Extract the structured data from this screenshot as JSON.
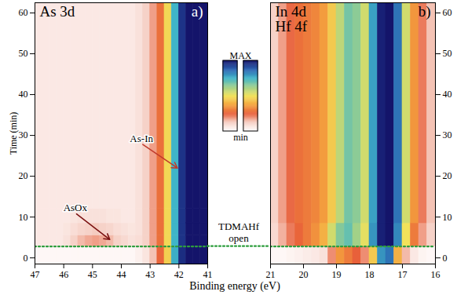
{
  "chart_data": {
    "type": "heatmap",
    "xlabel": "Binding energy (eV)",
    "ylabel": "Time (min)",
    "ylim": [
      -1.5,
      62.5
    ],
    "yticks": [
      0,
      10,
      20,
      30,
      40,
      50,
      60
    ],
    "colorbar": {
      "range": [
        0,
        100
      ],
      "ticks": [
        {
          "value": 0,
          "label": "min"
        },
        {
          "value": 100,
          "label": "MAX"
        }
      ],
      "colors": [
        "#ffffff",
        "#f6d0c6",
        "#e8603a",
        "#f4a43e",
        "#f2e25a",
        "#9fd08a",
        "#3fb5c8",
        "#2a62b2",
        "#14146a"
      ]
    },
    "marker_line": {
      "y": 2.8,
      "label": "TDMAHf open",
      "color": "#2e9e3e",
      "line_style": "dotted"
    },
    "panels": [
      {
        "title": [
          "As 3d"
        ],
        "letter": "a)",
        "xlim": [
          47,
          41
        ],
        "xticks": [
          47,
          46,
          45,
          44,
          43,
          42,
          41
        ],
        "cells": {
          "x_edges": [
            47,
            46.75,
            46.5,
            46.25,
            46,
            45.75,
            45.5,
            45.25,
            45,
            44.75,
            44.5,
            44.25,
            44,
            43.75,
            43.5,
            43.25,
            43,
            42.75,
            42.5,
            42.25,
            42,
            41.75,
            41.5,
            41.25,
            41
          ],
          "y_edges": [
            -1.5,
            2.8,
            5.5,
            8.5,
            12,
            62.5
          ],
          "values": [
            [
              2,
              2,
              2,
              2,
              2,
              2,
              2,
              2,
              2,
              2,
              2,
              2,
              2,
              2,
              4,
              7,
              14,
              26,
              46,
              76,
              96,
              100,
              100,
              100
            ],
            [
              6,
              6,
              6,
              6,
              8,
              12,
              15,
              17,
              18,
              17,
              15,
              12,
              10,
              8,
              9,
              12,
              18,
              28,
              48,
              75,
              95,
              100,
              100,
              100
            ],
            [
              6,
              6,
              6,
              6,
              7,
              9,
              11,
              12,
              13,
              12,
              11,
              9,
              8,
              7,
              8,
              12,
              18,
              28,
              48,
              75,
              95,
              100,
              100,
              100
            ],
            [
              6,
              6,
              6,
              6,
              6,
              7,
              8,
              8,
              8,
              8,
              7,
              7,
              6,
              6,
              8,
              12,
              18,
              28,
              48,
              75,
              95,
              100,
              100,
              100
            ],
            [
              6,
              6,
              6,
              6,
              6,
              6,
              6,
              6,
              6,
              6,
              6,
              6,
              6,
              6,
              8,
              12,
              18,
              28,
              48,
              75,
              95,
              100,
              100,
              100
            ]
          ]
        },
        "annotations": [
          {
            "text": "AsOx",
            "x": 44.4,
            "y": 4.5,
            "label_x": 45.6,
            "label_y": 11,
            "color": "#7a1010"
          },
          {
            "text": "As-In",
            "x": 42.05,
            "y": 22,
            "label_x": 43.3,
            "label_y": 28,
            "color": "#c0392b"
          }
        ]
      },
      {
        "title": [
          "In 4d",
          "Hf 4f"
        ],
        "letter": "b)",
        "xlim": [
          21,
          16
        ],
        "xticks": [
          21,
          20,
          19,
          18,
          17,
          16
        ],
        "cells": {
          "x_edges": [
            21,
            20.75,
            20.5,
            20.25,
            20,
            19.75,
            19.5,
            19.25,
            19,
            18.75,
            18.5,
            18.25,
            18,
            17.75,
            17.5,
            17.25,
            17,
            16.75,
            16.5,
            16.25,
            16
          ],
          "y_edges": [
            -1.5,
            2.8,
            8.5,
            62.5
          ],
          "values": [
            [
              2,
              2,
              3,
              4,
              5,
              6,
              8,
              20,
              35,
              30,
              25,
              20,
              45,
              80,
              85,
              40,
              15,
              6,
              3,
              2
            ],
            [
              10,
              16,
              22,
              26,
              30,
              34,
              40,
              55,
              66,
              70,
              62,
              52,
              80,
              98,
              100,
              82,
              50,
              30,
              18,
              12
            ],
            [
              12,
              18,
              24,
              28,
              30,
              32,
              36,
              45,
              58,
              68,
              65,
              55,
              78,
              98,
              100,
              85,
              55,
              35,
              22,
              14
            ]
          ]
        },
        "annotations": []
      }
    ]
  }
}
